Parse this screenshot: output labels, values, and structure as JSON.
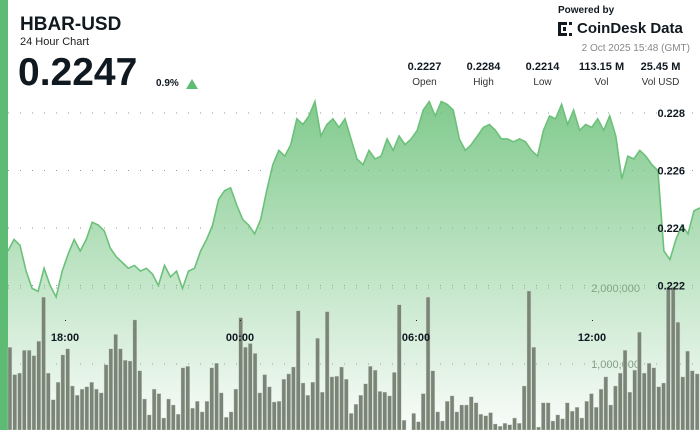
{
  "header": {
    "title": "HBAR-USD",
    "subtitle": "24 Hour Chart",
    "price": "0.2247",
    "change": "0.9%",
    "change_direction": "up"
  },
  "branding": {
    "powered_by": "Powered by",
    "brand": "CoinDesk Data",
    "timestamp": "2 Oct 2025 15:48 (GMT)"
  },
  "stats": [
    {
      "value": "0.2227",
      "label": "Open"
    },
    {
      "value": "0.2284",
      "label": "High"
    },
    {
      "value": "0.2214",
      "label": "Low"
    },
    {
      "value": "113.15 M",
      "label": "Vol"
    },
    {
      "value": "25.45 M",
      "label": "Vol USD"
    }
  ],
  "colors": {
    "accent": "#5dbb73",
    "line": "#6cc17a",
    "bars": "#7a8577",
    "text": "#101820"
  },
  "chart_data": {
    "type": "line",
    "x_tick_labels": [
      "18:00",
      "00:00",
      "06:00",
      "12:00"
    ],
    "price_tick_labels": [
      "0.228",
      "0.226",
      "0.224",
      "0.222"
    ],
    "price_ticks": [
      0.228,
      0.226,
      0.224,
      0.222
    ],
    "volume_tick_labels": [
      "2,000,000",
      "1,000,000"
    ],
    "volume_ticks": [
      2000000,
      1000000
    ],
    "grid": true,
    "price": [
      0.2232,
      0.2236,
      0.2234,
      0.2225,
      0.2219,
      0.2218,
      0.2226,
      0.222,
      0.2216,
      0.2225,
      0.2231,
      0.2236,
      0.2232,
      0.2236,
      0.2242,
      0.2241,
      0.2239,
      0.2233,
      0.223,
      0.2228,
      0.2226,
      0.2227,
      0.2225,
      0.2226,
      0.2224,
      0.222,
      0.2227,
      0.2223,
      0.2225,
      0.2219,
      0.2225,
      0.2226,
      0.2232,
      0.2236,
      0.2241,
      0.225,
      0.2253,
      0.2254,
      0.2248,
      0.2243,
      0.2241,
      0.2238,
      0.2243,
      0.2253,
      0.2262,
      0.2267,
      0.2265,
      0.2269,
      0.2278,
      0.2276,
      0.2279,
      0.2284,
      0.2272,
      0.2276,
      0.2278,
      0.2275,
      0.2278,
      0.2271,
      0.2264,
      0.2262,
      0.2267,
      0.2264,
      0.2265,
      0.2271,
      0.2267,
      0.2272,
      0.2269,
      0.2271,
      0.2274,
      0.2281,
      0.2284,
      0.2279,
      0.2284,
      0.2283,
      0.2281,
      0.2271,
      0.2267,
      0.2269,
      0.2272,
      0.2275,
      0.2276,
      0.2274,
      0.2271,
      0.2271,
      0.227,
      0.2271,
      0.227,
      0.2267,
      0.2265,
      0.2274,
      0.2279,
      0.2278,
      0.2283,
      0.2276,
      0.2281,
      0.2274,
      0.2276,
      0.2275,
      0.2278,
      0.2274,
      0.2279,
      0.2272,
      0.2257,
      0.2265,
      0.2264,
      0.2267,
      0.2265,
      0.2262,
      0.226,
      0.2232,
      0.2229,
      0.2236,
      0.2241,
      0.2238,
      0.2246,
      0.2247
    ],
    "volume": [
      1220000,
      860000,
      880000,
      1180000,
      1180000,
      1110000,
      1300000,
      1880000,
      880000,
      530000,
      760000,
      1120000,
      1200000,
      710000,
      590000,
      670000,
      700000,
      760000,
      670000,
      620000,
      990000,
      1200000,
      1390000,
      1200000,
      1050000,
      1040000,
      1580000,
      910000,
      540000,
      330000,
      670000,
      610000,
      290000,
      540000,
      460000,
      340000,
      950000,
      970000,
      420000,
      510000,
      370000,
      510000,
      950000,
      1010000,
      620000,
      300000,
      370000,
      670000,
      1610000,
      1220000,
      1270000,
      1140000,
      620000,
      860000,
      700000,
      500000,
      510000,
      800000,
      870000,
      960000,
      1700000,
      750000,
      590000,
      760000,
      1340000,
      630000,
      1690000,
      830000,
      840000,
      960000,
      800000,
      350000,
      470000,
      590000,
      740000,
      970000,
      920000,
      640000,
      630000,
      580000,
      890000,
      1780000,
      260000,
      130000,
      350000,
      240000,
      610000,
      1880000,
      910000,
      370000,
      250000,
      510000,
      580000,
      370000,
      460000,
      460000,
      570000,
      490000,
      340000,
      320000,
      360000,
      210000,
      180000,
      220000,
      200000,
      290000,
      220000,
      710000,
      1960000,
      1220000,
      170000,
      490000,
      490000,
      250000,
      330000,
      280000,
      490000,
      380000,
      430000,
      290000,
      510000,
      610000,
      430000,
      670000,
      830000,
      460000,
      710000,
      880000,
      1180000,
      630000,
      920000,
      1420000,
      880000,
      1010000,
      950000,
      700000,
      750000,
      2010000,
      2010000,
      1550000,
      830000,
      1170000,
      910000,
      870000
    ]
  }
}
